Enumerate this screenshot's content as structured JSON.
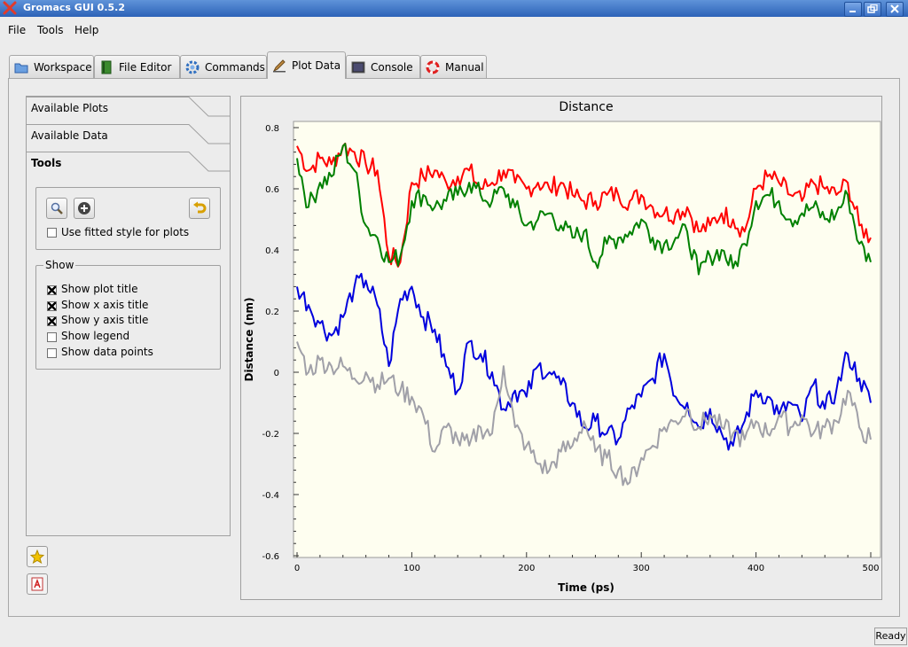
{
  "window": {
    "title": "Gromacs GUI 0.5.2",
    "app_icon": "x-icon"
  },
  "menubar": {
    "items": [
      "File",
      "Tools",
      "Help"
    ]
  },
  "tabs": [
    {
      "label": "Workspace",
      "icon": "folder-icon"
    },
    {
      "label": "File Editor",
      "icon": "book-icon"
    },
    {
      "label": "Commands",
      "icon": "gear-icon"
    },
    {
      "label": "Plot Data",
      "icon": "pen-icon",
      "active": true
    },
    {
      "label": "Console",
      "icon": "terminal-icon"
    },
    {
      "label": "Manual",
      "icon": "lifebuoy-icon"
    }
  ],
  "sidebar": {
    "sections": [
      "Available Plots",
      "Available Data",
      "Tools"
    ],
    "active_section": "Tools",
    "tools": {
      "fitted_style_label": "Use fitted style for plots",
      "fitted_style_checked": false
    },
    "show": {
      "title": "Show",
      "options": [
        {
          "label": "Show plot title",
          "checked": true
        },
        {
          "label": "Show x axis title",
          "checked": true
        },
        {
          "label": "Show y axis title",
          "checked": true
        },
        {
          "label": "Show legend",
          "checked": false
        },
        {
          "label": "Show data points",
          "checked": false
        }
      ]
    }
  },
  "status": {
    "text": "Ready"
  },
  "colors": {
    "titlebar": "#2c62b7",
    "plot_background": "#fefef0",
    "series_red": "#ff0000",
    "series_green": "#008000",
    "series_blue": "#0000dd",
    "series_gray": "#a0a0a8"
  },
  "chart_data": {
    "type": "line",
    "title": "Distance",
    "xlabel": "Time (ps)",
    "ylabel": "Distance (nm)",
    "xlim": [
      0,
      500
    ],
    "ylim": [
      -0.6,
      0.8
    ],
    "xticks": [
      "0",
      "100",
      "200",
      "300",
      "400",
      "500"
    ],
    "yticks": [
      "0.8",
      "0.6",
      "0.4",
      "0.2",
      "0",
      "-0.2",
      "-0.4",
      "-0.6"
    ],
    "grid": false,
    "legend": "none",
    "x": [
      0,
      10,
      20,
      30,
      40,
      50,
      60,
      70,
      80,
      90,
      100,
      110,
      120,
      130,
      140,
      150,
      160,
      170,
      180,
      190,
      200,
      210,
      220,
      230,
      240,
      250,
      260,
      270,
      280,
      290,
      300,
      310,
      320,
      330,
      340,
      350,
      360,
      370,
      380,
      390,
      400,
      410,
      420,
      430,
      440,
      450,
      460,
      470,
      480,
      490,
      500
    ],
    "series": [
      {
        "color": "#ff0000",
        "values": [
          0.74,
          0.66,
          0.7,
          0.68,
          0.74,
          0.72,
          0.68,
          0.66,
          0.38,
          0.36,
          0.62,
          0.64,
          0.66,
          0.62,
          0.64,
          0.66,
          0.6,
          0.62,
          0.66,
          0.62,
          0.6,
          0.62,
          0.6,
          0.62,
          0.58,
          0.56,
          0.56,
          0.58,
          0.58,
          0.56,
          0.58,
          0.54,
          0.52,
          0.52,
          0.54,
          0.46,
          0.48,
          0.52,
          0.5,
          0.46,
          0.6,
          0.64,
          0.62,
          0.58,
          0.56,
          0.62,
          0.6,
          0.58,
          0.62,
          0.48,
          0.44
        ]
      },
      {
        "color": "#008000",
        "values": [
          0.7,
          0.54,
          0.62,
          0.64,
          0.74,
          0.66,
          0.48,
          0.44,
          0.36,
          0.38,
          0.56,
          0.58,
          0.54,
          0.56,
          0.58,
          0.62,
          0.58,
          0.56,
          0.6,
          0.54,
          0.48,
          0.5,
          0.52,
          0.48,
          0.44,
          0.46,
          0.36,
          0.42,
          0.44,
          0.46,
          0.5,
          0.44,
          0.42,
          0.44,
          0.46,
          0.32,
          0.38,
          0.4,
          0.34,
          0.42,
          0.56,
          0.58,
          0.56,
          0.5,
          0.52,
          0.54,
          0.5,
          0.52,
          0.58,
          0.42,
          0.36
        ]
      },
      {
        "color": "#0000dd",
        "values": [
          0.28,
          0.22,
          0.16,
          0.12,
          0.18,
          0.28,
          0.3,
          0.22,
          0.02,
          0.24,
          0.28,
          0.18,
          0.14,
          0.02,
          -0.06,
          0.1,
          0.06,
          0.0,
          -0.12,
          -0.06,
          -0.08,
          0.02,
          0.0,
          -0.04,
          -0.1,
          -0.18,
          -0.16,
          -0.2,
          -0.22,
          -0.12,
          -0.08,
          -0.02,
          0.06,
          -0.08,
          -0.1,
          -0.18,
          -0.12,
          -0.2,
          -0.24,
          -0.16,
          -0.06,
          -0.08,
          -0.14,
          -0.1,
          -0.16,
          -0.04,
          -0.12,
          -0.06,
          0.06,
          -0.02,
          -0.1
        ]
      },
      {
        "color": "#a0a0a8",
        "values": [
          0.1,
          0.0,
          0.04,
          0.02,
          0.02,
          -0.02,
          0.0,
          -0.04,
          -0.02,
          -0.06,
          -0.08,
          -0.14,
          -0.26,
          -0.18,
          -0.22,
          -0.24,
          -0.18,
          -0.2,
          0.02,
          -0.18,
          -0.24,
          -0.3,
          -0.32,
          -0.26,
          -0.24,
          -0.16,
          -0.26,
          -0.28,
          -0.32,
          -0.36,
          -0.28,
          -0.24,
          -0.18,
          -0.16,
          -0.12,
          -0.18,
          -0.14,
          -0.18,
          -0.2,
          -0.22,
          -0.16,
          -0.2,
          -0.14,
          -0.18,
          -0.14,
          -0.2,
          -0.18,
          -0.16,
          -0.06,
          -0.18,
          -0.22
        ]
      }
    ]
  }
}
